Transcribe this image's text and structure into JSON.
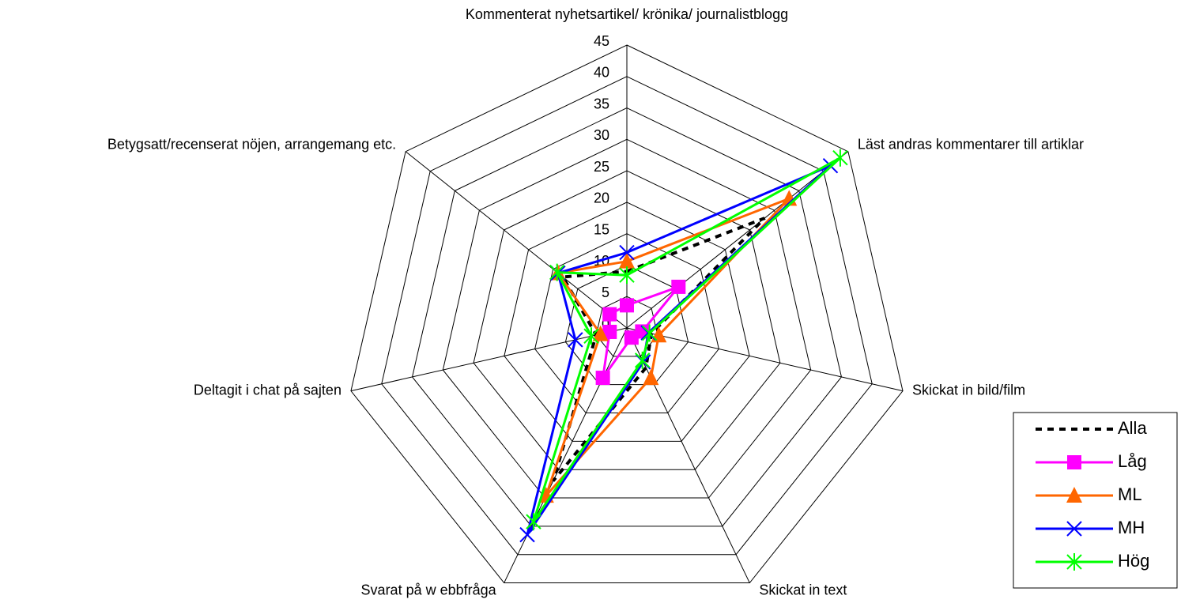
{
  "chart_data": {
    "type": "radar",
    "categories": [
      "Kommenterat nyhetsartikel/ krönika/ journalistblogg",
      "Läst andras kommentarer till artiklar",
      "Skickat in bild/film",
      "Skickat in text",
      "Svarat på w ebbfråga",
      "Deltagit i chat på sajten",
      "Betygsatt/recenserat nöjen, arrangemang etc."
    ],
    "series": [
      {
        "name": "Alla",
        "color": "#000000",
        "line_style": "dashed",
        "marker": "none",
        "values": [
          9,
          28,
          4,
          7,
          27,
          5,
          13
        ]
      },
      {
        "name": "Låg",
        "color": "#ff00ff",
        "line_style": "solid",
        "marker": "square",
        "values": [
          3.6,
          10.5,
          2.5,
          1.7,
          8.8,
          2.8,
          3.5
        ]
      },
      {
        "name": "ML",
        "color": "#ff6600",
        "line_style": "solid",
        "marker": "triangle",
        "values": [
          10.6,
          33,
          5.2,
          8.8,
          29.6,
          4.3,
          14
        ]
      },
      {
        "name": "MH",
        "color": "#0000ff",
        "line_style": "solid",
        "marker": "x",
        "values": [
          12,
          41.4,
          3.5,
          6,
          36.5,
          8.4,
          14
        ]
      },
      {
        "name": "Hög",
        "color": "#00ff00",
        "line_style": "solid",
        "marker": "star",
        "values": [
          8.4,
          43.4,
          3.7,
          5.7,
          34.2,
          5.8,
          14.2
        ]
      }
    ],
    "ylim": [
      0,
      45
    ],
    "yticks": [
      0,
      5,
      10,
      15,
      20,
      25,
      30,
      35,
      40,
      45
    ],
    "grid": true,
    "legend": "lower right"
  }
}
